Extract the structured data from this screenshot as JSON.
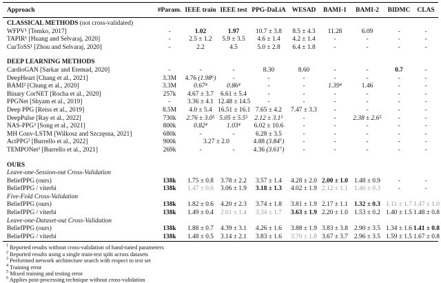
{
  "header": {
    "columns": [
      "Approach",
      "#Param.",
      "IEEE train",
      "IEEE test",
      "PPG-DaLiA",
      "WESAD",
      "BAMI-1",
      "BAMI-2",
      "BIDMC",
      "CLAS"
    ]
  },
  "table": {
    "rows": [
      {
        "type": "section",
        "label": "CLASSICAL METHODS",
        "note": "(not cross-validated)"
      },
      {
        "type": "data",
        "approach": "WFPV¹ [Temko, 2017]",
        "param": {
          "t": "-"
        },
        "cells": [
          {
            "t": "1.02",
            "s": "b"
          },
          {
            "t": "1.97",
            "s": "b"
          },
          {
            "t": "10.7 ± 3.8"
          },
          {
            "t": "8.5 ± 4.3"
          },
          {
            "t": "11.28"
          },
          {
            "t": "6.09"
          },
          {
            "t": "-"
          },
          {
            "t": "-"
          }
        ]
      },
      {
        "type": "data",
        "approach": "TAPIR¹ [Huang and Selvaraj, 2020]",
        "param": {
          "t": "-"
        },
        "cells": [
          {
            "t": "2.5 ± 1.2"
          },
          {
            "t": "5.9 ± 3.5"
          },
          {
            "t": "4.6 ± 1.4"
          },
          {
            "t": "4.2 ± 1.4"
          },
          {
            "t": "-"
          },
          {
            "t": "-"
          },
          {
            "t": "-"
          },
          {
            "t": "-"
          }
        ]
      },
      {
        "type": "data",
        "approach": "CurToSS¹ [Zhou and Selvaraj, 2020]",
        "param": {
          "t": "-"
        },
        "cells": [
          {
            "t": "2.2"
          },
          {
            "t": "4.5"
          },
          {
            "t": "5.0 ± 2.8"
          },
          {
            "t": "6.4 ± 1.8"
          },
          {
            "t": "-"
          },
          {
            "t": "-"
          },
          {
            "t": "-"
          },
          {
            "t": "-"
          }
        ]
      },
      {
        "type": "spacer"
      },
      {
        "type": "section",
        "label": "DEEP LEARNING METHODS",
        "note": ""
      },
      {
        "type": "data",
        "approach": "CardioGAN [Sarkar and Etemad, 2020]",
        "param": {
          "t": "-"
        },
        "cells": [
          {
            "t": "-"
          },
          {
            "t": "-"
          },
          {
            "t": "8.30"
          },
          {
            "t": "8.60"
          },
          {
            "t": "-"
          },
          {
            "t": "-"
          },
          {
            "t": "0.7",
            "s": "b"
          },
          {
            "t": "-"
          }
        ]
      },
      {
        "type": "data",
        "approach": "DeepHeart [Chang et al., 2021]",
        "param": {
          "t": "3.3M"
        },
        "cells": [
          {
            "segs": [
              {
                "t": "4.76 "
              },
              {
                "t": "(1.98⁶)",
                "s": "i"
              }
            ]
          },
          {
            "t": "-"
          },
          {
            "t": "-"
          },
          {
            "t": "-"
          },
          {
            "t": "-"
          },
          {
            "t": "-"
          },
          {
            "t": "-"
          },
          {
            "t": "-"
          }
        ]
      },
      {
        "type": "data",
        "approach": "BAMI² [Chung et al., 2020]",
        "param": {
          "t": "3.3M"
        },
        "cells": [
          {
            "t": "0.67⁴",
            "s": "i"
          },
          {
            "t": "0.86⁴",
            "s": "i"
          },
          {
            "t": "-"
          },
          {
            "t": "-"
          },
          {
            "t": "1.39⁴",
            "s": "i"
          },
          {
            "t": "1.46"
          },
          {
            "t": "-"
          },
          {
            "t": "-"
          }
        ]
      },
      {
        "type": "data",
        "approach": "Binary CorNET [Rocha et al., 2020]",
        "param": {
          "t": "257k"
        },
        "cells": [
          {
            "t": "4.67 ± 3.7"
          },
          {
            "t": "6.61 ± 5.4"
          },
          {
            "t": "-"
          },
          {
            "t": "-"
          },
          {
            "t": "-"
          },
          {
            "t": "-"
          },
          {
            "t": "-"
          },
          {
            "t": "-"
          }
        ]
      },
      {
        "type": "data",
        "approach": "PPGNet [Shyam et al., 2019]",
        "param": {
          "t": "-"
        },
        "cells": [
          {
            "t": "3.36 ± 4.1"
          },
          {
            "t": "12.48 ± 14.5"
          },
          {
            "t": "-"
          },
          {
            "t": "-"
          },
          {
            "t": "-"
          },
          {
            "t": "-"
          },
          {
            "t": "-"
          },
          {
            "t": "-"
          }
        ]
      },
      {
        "type": "data",
        "approach": "Deep PPG [Reiss et al., 2019]",
        "param": {
          "t": "8.5M"
        },
        "cells": [
          {
            "t": "4.0 ± 5.4"
          },
          {
            "t": "16.51 ± 16.1"
          },
          {
            "t": "7.65 ± 4.2"
          },
          {
            "t": "7.47 ± 3.3"
          },
          {
            "t": "-"
          },
          {
            "t": "-"
          },
          {
            "t": "-"
          },
          {
            "t": "-"
          }
        ]
      },
      {
        "type": "data",
        "approach": "DeepPulse [Ray et al., 2022]",
        "param": {
          "t": "730k"
        },
        "cells": [
          {
            "t": "2.76 ± 3.0⁵",
            "s": "i"
          },
          {
            "t": "5.05 ± 5.5⁵",
            "s": "i"
          },
          {
            "t": "2.12 ± 3.1⁵",
            "s": "i"
          },
          {
            "t": "-"
          },
          {
            "t": "-"
          },
          {
            "t": "2.38 ± 2.6⁵",
            "s": "i"
          },
          {
            "t": "-"
          },
          {
            "t": "-"
          }
        ]
      },
      {
        "type": "data",
        "approach": "NAS-PPG³ [Song et al., 2021]",
        "param": {
          "t": "800k"
        },
        "cells": [
          {
            "t": "0.82⁴",
            "s": "i"
          },
          {
            "t": "1.03⁴",
            "s": "i"
          },
          {
            "t": "6.02 ± 10.6"
          },
          {
            "t": "-"
          },
          {
            "t": "-"
          },
          {
            "t": "-"
          },
          {
            "t": "-"
          },
          {
            "t": "-"
          }
        ]
      },
      {
        "type": "data",
        "approach": "MH Conv-LSTM [Wilkosz and Szczęsna, 2021]",
        "param": {
          "t": "680k"
        },
        "cells": [
          {
            "t": "-"
          },
          {
            "t": "-"
          },
          {
            "t": "6.28 ± 3.5"
          },
          {
            "t": "-"
          },
          {
            "t": "-"
          },
          {
            "t": "-"
          },
          {
            "t": "-"
          },
          {
            "t": "-"
          }
        ]
      },
      {
        "type": "data",
        "approach": "ActPPG³ [Burrello et al., 2022]",
        "param": {
          "t": "900k"
        },
        "cells": [
          {
            "t": "3.27 ± 2.0",
            "span": 2
          },
          {
            "segs": [
              {
                "t": "4.88 "
              },
              {
                "t": "(3.84⁷)",
                "s": "i"
              }
            ]
          },
          {
            "t": "-"
          },
          {
            "t": "-"
          },
          {
            "t": "-"
          },
          {
            "t": "-"
          },
          {
            "t": "-"
          }
        ]
      },
      {
        "type": "data",
        "approach": "TEMPONet³ [Burrello et al., 2021]",
        "param": {
          "t": "269k"
        },
        "cells": [
          {
            "t": "-"
          },
          {
            "t": "-"
          },
          {
            "segs": [
              {
                "t": "4.36 "
              },
              {
                "t": "(3.61⁷)",
                "s": "i"
              }
            ]
          },
          {
            "t": "-"
          },
          {
            "t": "-"
          },
          {
            "t": "-"
          },
          {
            "t": "-"
          },
          {
            "t": "-"
          }
        ]
      },
      {
        "type": "spacer"
      },
      {
        "type": "section",
        "label": "OURS",
        "note": ""
      },
      {
        "type": "subheader",
        "label": "Leave-one-Session-out Cross-Validation"
      },
      {
        "type": "data",
        "approach": "BeliefPPG (ours)",
        "param": {
          "t": "138k",
          "s": "b"
        },
        "cells": [
          {
            "t": "1.75 ± 0.8"
          },
          {
            "t": "3.78 ± 2.2"
          },
          {
            "t": "3.57 ± 1.4"
          },
          {
            "t": "4.28 ± 2.0"
          },
          {
            "t": "2.00 ± 1.0",
            "s": "b"
          },
          {
            "t": "1.48 ± 0.9"
          },
          {
            "t": "-"
          },
          {
            "t": "-"
          }
        ]
      },
      {
        "type": "data",
        "approach": "BeliefPPG / viterbi",
        "param": {
          "t": "138k",
          "s": "b"
        },
        "cells": [
          {
            "t": "1.47 ± 0.6",
            "s": "g"
          },
          {
            "t": "3.06 ± 1.9"
          },
          {
            "t": "3.18 ± 1.3",
            "s": "b"
          },
          {
            "t": "4.02 ± 1.9"
          },
          {
            "t": "2.12 ± 1.1",
            "s": "g"
          },
          {
            "t": "1.46 ± 0.3",
            "s": "g"
          },
          {
            "t": "-"
          },
          {
            "t": "-"
          }
        ]
      },
      {
        "type": "subheader",
        "label": "Five-Fold Cross-Validation"
      },
      {
        "type": "data",
        "approach": "BeliefPPG (ours)",
        "param": {
          "t": "138k",
          "s": "b"
        },
        "cells": [
          {
            "t": "1.82 ± 0.6"
          },
          {
            "t": "4.20 ± 2.3"
          },
          {
            "t": "3.74 ± 1.8"
          },
          {
            "t": "3.81 ± 1.9"
          },
          {
            "t": "2.17 ± 1.1"
          },
          {
            "t": "1.32 ± 0.3",
            "s": "b"
          },
          {
            "t": "1.11 ± 1.7",
            "s": "g"
          },
          {
            "t": "1.47 ± 1.0",
            "s": "g"
          }
        ]
      },
      {
        "type": "data",
        "approach": "BeliefPPG / viterbi",
        "param": {
          "t": "138k",
          "s": "b"
        },
        "cells": [
          {
            "t": "1.49 ± 0.4"
          },
          {
            "t": "2.61 ± 1.4",
            "s": "g"
          },
          {
            "t": "3.34 ± 1.7",
            "s": "g"
          },
          {
            "t": "3.63 ± 1.9",
            "s": "b"
          },
          {
            "t": "2.20 ± 1.0"
          },
          {
            "t": "1.53 ± 0.2"
          },
          {
            "t": "1.40 ± 1.5"
          },
          {
            "t": "1.48 ± 0.8"
          }
        ]
      },
      {
        "type": "subheader",
        "label": "Leave-one-Dataset-out Cross-Validation"
      },
      {
        "type": "data",
        "approach": "BeliefPPG (ours)",
        "param": {
          "t": "138k",
          "s": "b"
        },
        "cells": [
          {
            "t": "1.88 ± 0.7"
          },
          {
            "t": "4.39 ± 3.1"
          },
          {
            "t": "4.26 ± 1.6"
          },
          {
            "t": "3.88 ± 1.9"
          },
          {
            "t": "3.83 ± 3.8"
          },
          {
            "t": "2.90 ± 3.5"
          },
          {
            "t": "1.34 ± 1.6"
          },
          {
            "t": "1.41 ± 0.8",
            "s": "b"
          }
        ]
      },
      {
        "type": "data",
        "approach": "BeliefPPG / viterbi",
        "param": {
          "t": "138k",
          "s": "b"
        },
        "cells": [
          {
            "t": "1.48 ± 0.5"
          },
          {
            "t": "3.14 ± 2.1"
          },
          {
            "t": "3.83 ± 1.6"
          },
          {
            "t": "3.70 ± 1.8",
            "s": "g"
          },
          {
            "t": "3.67 ± 3.7"
          },
          {
            "t": "2.96 ± 3.5"
          },
          {
            "t": "1.59 ± 1.5"
          },
          {
            "t": "1.67 ± 0.8"
          }
        ]
      }
    ]
  },
  "footnotes": [
    {
      "mark": "1",
      "text": "Reported results without cross-validation of hand-tuned parameters"
    },
    {
      "mark": "2",
      "text": "Reported results using a single train-test split across datasets"
    },
    {
      "mark": "3",
      "text": "Performed network architecture search with respect to test set"
    },
    {
      "mark": "4",
      "text": "Training error"
    },
    {
      "mark": "5",
      "text": "Mixed training and testing error"
    },
    {
      "mark": "6",
      "text": "Applies post-processing technique without cross-validation"
    },
    {
      "mark": "7",
      "text": "Subject-specific fine-tuning"
    }
  ]
}
